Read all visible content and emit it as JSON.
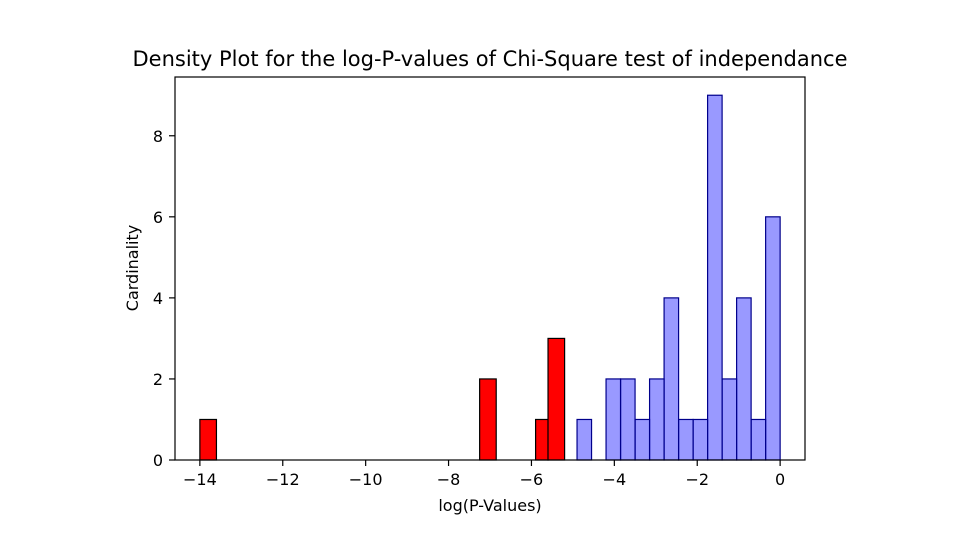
{
  "chart_data": {
    "type": "bar",
    "title": "Density Plot for the log-P-values of Chi-Square test of independance",
    "xlabel": "log(P-Values)",
    "ylabel": "Cardinality",
    "xlim": [
      -14.6,
      0.6
    ],
    "ylim": [
      0,
      9.45
    ],
    "grid": false,
    "legend": "none",
    "x_ticks": [
      -14,
      -12,
      -10,
      -8,
      -6,
      -4,
      -2,
      0
    ],
    "x_tick_labels": [
      "−14",
      "−12",
      "−10",
      "−8",
      "−6",
      "−4",
      "−2",
      "0"
    ],
    "y_ticks": [
      0,
      2,
      4,
      6,
      8
    ],
    "y_tick_labels": [
      "0",
      "2",
      "4",
      "6",
      "8"
    ],
    "series": [
      {
        "color": "#ff0000",
        "edge_color": "#000000",
        "opacity": 1.0,
        "bins": [
          {
            "x0": -14.0,
            "x1": -13.6,
            "value": 1
          },
          {
            "x0": -7.25,
            "x1": -6.85,
            "value": 2
          },
          {
            "x0": -5.9,
            "x1": -5.6,
            "value": 1
          },
          {
            "x0": -5.6,
            "x1": -5.2,
            "value": 3
          }
        ]
      },
      {
        "color": "#0000ff",
        "edge_color": "#00008b",
        "opacity": 0.4,
        "bins": [
          {
            "x0": -4.9,
            "x1": -4.55,
            "value": 1
          },
          {
            "x0": -4.2,
            "x1": -3.85,
            "value": 2
          },
          {
            "x0": -3.85,
            "x1": -3.5,
            "value": 2
          },
          {
            "x0": -3.5,
            "x1": -3.15,
            "value": 1
          },
          {
            "x0": -3.15,
            "x1": -2.8,
            "value": 2
          },
          {
            "x0": -2.8,
            "x1": -2.45,
            "value": 4
          },
          {
            "x0": -2.45,
            "x1": -2.1,
            "value": 1
          },
          {
            "x0": -2.1,
            "x1": -1.75,
            "value": 1
          },
          {
            "x0": -1.75,
            "x1": -1.4,
            "value": 9
          },
          {
            "x0": -1.4,
            "x1": -1.05,
            "value": 2
          },
          {
            "x0": -1.05,
            "x1": -0.7,
            "value": 4
          },
          {
            "x0": -0.7,
            "x1": -0.35,
            "value": 1
          },
          {
            "x0": -0.35,
            "x1": 0.0,
            "value": 6
          }
        ]
      }
    ]
  }
}
